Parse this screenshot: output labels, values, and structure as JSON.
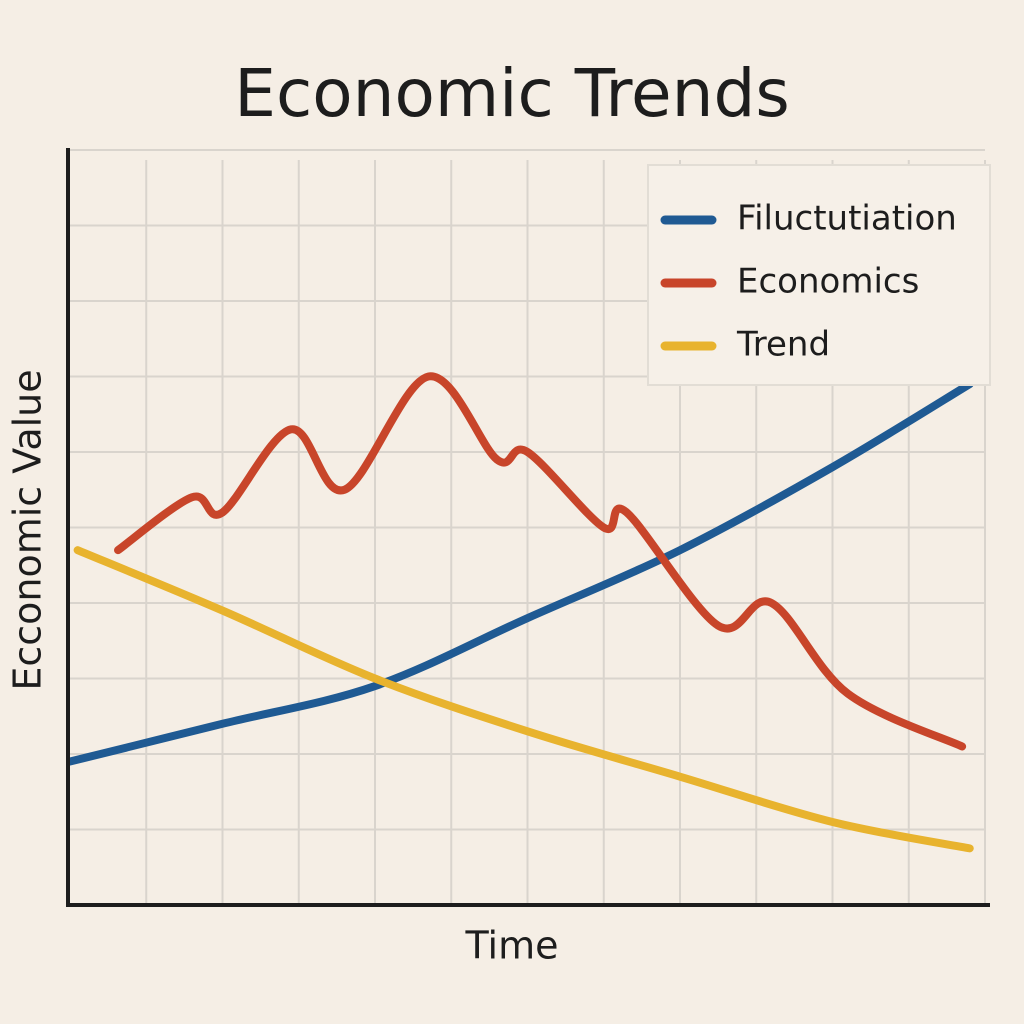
{
  "chart_data": {
    "type": "line",
    "title": "Economic Trends",
    "x_label": "Time",
    "y_label": "Ecconomic Value",
    "xlim": [
      0,
      12
    ],
    "ylim": [
      0,
      10
    ],
    "xticks": [
      1,
      2,
      3,
      4,
      5,
      6,
      7,
      8,
      9,
      10,
      11,
      12
    ],
    "yticks": [
      1,
      2,
      3,
      4,
      5,
      6,
      7,
      8,
      9,
      10
    ],
    "grid": true,
    "legend": "upper right",
    "series": [
      {
        "name": "Filuctutiation",
        "color": "#1f5a93",
        "x": [
          0,
          2,
          4,
          6,
          8,
          10,
          11.8
        ],
        "values": [
          1.9,
          2.4,
          2.9,
          3.8,
          4.7,
          5.8,
          6.9
        ]
      },
      {
        "name": "Economics",
        "color": "#c8452a",
        "x": [
          0.63,
          1.6,
          2,
          2.9,
          3.6,
          4.7,
          5.6,
          6,
          7,
          7.3,
          8.5,
          9.2,
          10.2,
          11.7
        ],
        "values": [
          4.7,
          5.4,
          5.2,
          6.3,
          5.5,
          7.0,
          5.9,
          6.0,
          5.0,
          5.2,
          3.7,
          4.0,
          2.8,
          2.1
        ]
      },
      {
        "name": "Trend",
        "color": "#e8b32e",
        "x": [
          0.1,
          2,
          4,
          6,
          8,
          10,
          11.8
        ],
        "values": [
          4.7,
          3.9,
          3.0,
          2.3,
          1.7,
          1.1,
          0.75
        ]
      }
    ]
  }
}
